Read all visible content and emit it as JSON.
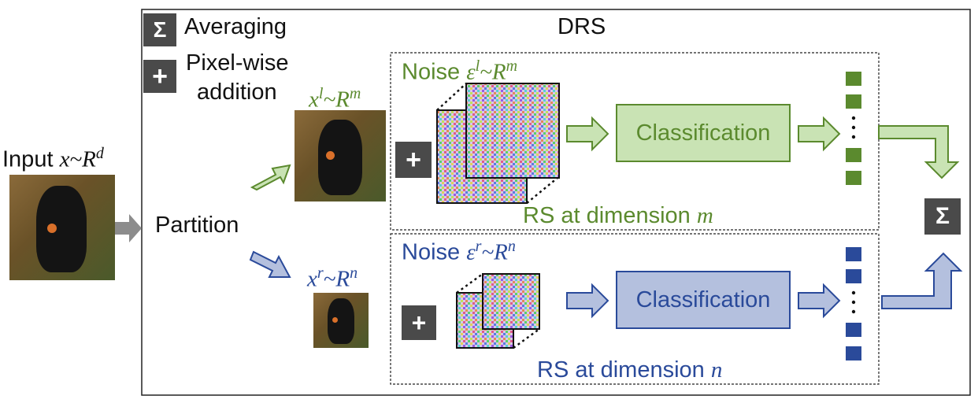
{
  "title": "DRS",
  "legend": {
    "sum_symbol": "Σ",
    "sum_label": "Averaging",
    "plus_symbol": "+",
    "plus_label_line1": "Pixel-wise",
    "plus_label_line2": "addition"
  },
  "input": {
    "label": "Input ",
    "math": "x~R",
    "sup": "d"
  },
  "partition_label": "Partition",
  "left_branch": {
    "x_math": "x",
    "x_sup": "l",
    "x_rest": "~R",
    "x_rest_sup": "m",
    "noise_label": "Noise ",
    "noise_math": "ε",
    "noise_sup": "l",
    "noise_rest": "~R",
    "noise_rest_sup": "m",
    "plus": "+",
    "classification": "Classification",
    "rs_label": "RS at dimension ",
    "rs_var": "m",
    "color": "#5b8a2e",
    "fill": "#c9e3b4"
  },
  "right_branch": {
    "x_math": "x",
    "x_sup": "r",
    "x_rest": "~R",
    "x_rest_sup": "n",
    "noise_label": "Noise ",
    "noise_math": "ε",
    "noise_sup": "r",
    "noise_rest": "~R",
    "noise_rest_sup": "n",
    "plus": "+",
    "classification": "Classification",
    "rs_label": "RS at dimension ",
    "rs_var": "n",
    "color": "#2a4a9a",
    "fill": "#b4c0de"
  },
  "output_symbol": "Σ",
  "colors": {
    "icon_bg": "#4a4a4a",
    "green": "#5b8a2e",
    "blue": "#2a4a9a",
    "gray_arrow": "#8c8c8c"
  }
}
